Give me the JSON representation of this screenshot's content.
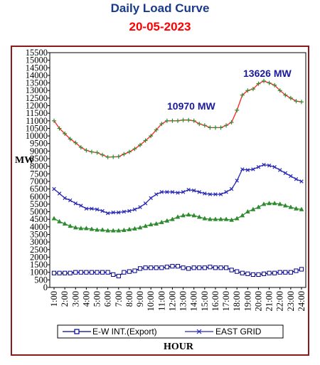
{
  "page": {
    "title": "Daily Load Curve",
    "date": "20-05-2023",
    "title_color": "#1a3a8a",
    "date_color": "#ff0000"
  },
  "chart_data": {
    "type": "line",
    "xlabel": "HOUR",
    "ylabel": "MW",
    "ylim": [
      0,
      15500
    ],
    "y_ticks": [
      0,
      500,
      1000,
      1500,
      2000,
      2500,
      3000,
      3500,
      4000,
      4500,
      5000,
      5500,
      6000,
      6500,
      7000,
      7500,
      8000,
      8500,
      9000,
      9500,
      10000,
      10500,
      11000,
      11500,
      12000,
      12500,
      13000,
      13500,
      14000,
      14500,
      15000,
      15500
    ],
    "x_tick_labels": [
      "1:00",
      "2:00",
      "3:00",
      "4:00",
      "5:00",
      "6:00",
      "7:00",
      "8:00",
      "9:00",
      "10:00",
      "11:00",
      "12:00",
      "13:00",
      "14:00",
      "15:00",
      "16:00",
      "17:00",
      "18:00",
      "19:00",
      "20:00",
      "21:00",
      "22:00",
      "23:00",
      "24:00"
    ],
    "x": [
      1,
      1.5,
      2,
      2.5,
      3,
      3.5,
      4,
      4.5,
      5,
      5.5,
      6,
      6.5,
      7,
      7.5,
      8,
      8.5,
      9,
      9.5,
      10,
      10.5,
      11,
      11.5,
      12,
      12.5,
      13,
      13.5,
      14,
      14.5,
      15,
      15.5,
      16,
      16.5,
      17,
      17.5,
      18,
      18.5,
      19,
      19.5,
      20,
      20.5,
      21,
      21.5,
      22,
      22.5,
      23,
      23.5,
      24
    ],
    "series": [
      {
        "name": "",
        "color": "#ff2020",
        "marker_color": "#2e8b2e",
        "marker": "plus",
        "values": [
          11000,
          10500,
          10150,
          9800,
          9550,
          9250,
          9050,
          8950,
          8900,
          8750,
          8600,
          8620,
          8640,
          8800,
          8950,
          9150,
          9400,
          9700,
          10000,
          10400,
          10800,
          11000,
          11000,
          11000,
          11050,
          11050,
          11000,
          10800,
          10700,
          10550,
          10550,
          10550,
          10700,
          10900,
          11700,
          12700,
          13000,
          13100,
          13450,
          13626,
          13500,
          13350,
          13000,
          12700,
          12500,
          12300,
          12250
        ]
      },
      {
        "name": "EAST GRID",
        "color": "#2727b5",
        "marker": "x",
        "values": [
          6500,
          6200,
          5900,
          5750,
          5550,
          5400,
          5200,
          5200,
          5150,
          5050,
          4900,
          4950,
          4950,
          5000,
          5050,
          5150,
          5300,
          5550,
          5900,
          6150,
          6300,
          6300,
          6300,
          6250,
          6300,
          6450,
          6400,
          6300,
          6200,
          6150,
          6150,
          6150,
          6300,
          6500,
          7050,
          7800,
          7750,
          7800,
          7950,
          8100,
          8050,
          7950,
          7750,
          7550,
          7350,
          7150,
          7000
        ]
      },
      {
        "name": "",
        "color": "#2e8b2e",
        "marker": "triangle",
        "values": [
          4550,
          4350,
          4200,
          4050,
          3950,
          3900,
          3900,
          3850,
          3800,
          3800,
          3750,
          3750,
          3750,
          3780,
          3830,
          3880,
          3950,
          4050,
          4150,
          4200,
          4300,
          4400,
          4500,
          4650,
          4750,
          4800,
          4750,
          4650,
          4550,
          4500,
          4500,
          4500,
          4500,
          4450,
          4550,
          4750,
          5000,
          5150,
          5300,
          5500,
          5550,
          5550,
          5500,
          5400,
          5300,
          5200,
          5150
        ]
      },
      {
        "name": "E-W INT.(Export)",
        "color": "#00008b",
        "marker": "square",
        "values": [
          950,
          950,
          950,
          950,
          1000,
          1000,
          1000,
          1000,
          1000,
          1000,
          1000,
          850,
          750,
          1000,
          1050,
          1100,
          1250,
          1300,
          1300,
          1300,
          1300,
          1350,
          1400,
          1400,
          1300,
          1250,
          1300,
          1300,
          1300,
          1350,
          1300,
          1300,
          1300,
          1150,
          1050,
          950,
          900,
          850,
          850,
          900,
          950,
          950,
          1000,
          1000,
          1000,
          1100,
          1200
        ]
      }
    ],
    "annotations": [
      "10970 MW",
      "13626 MW"
    ],
    "legend": [
      "E-W INT.(Export)",
      "EAST GRID"
    ],
    "legend_position": "bottom",
    "grid": false
  }
}
